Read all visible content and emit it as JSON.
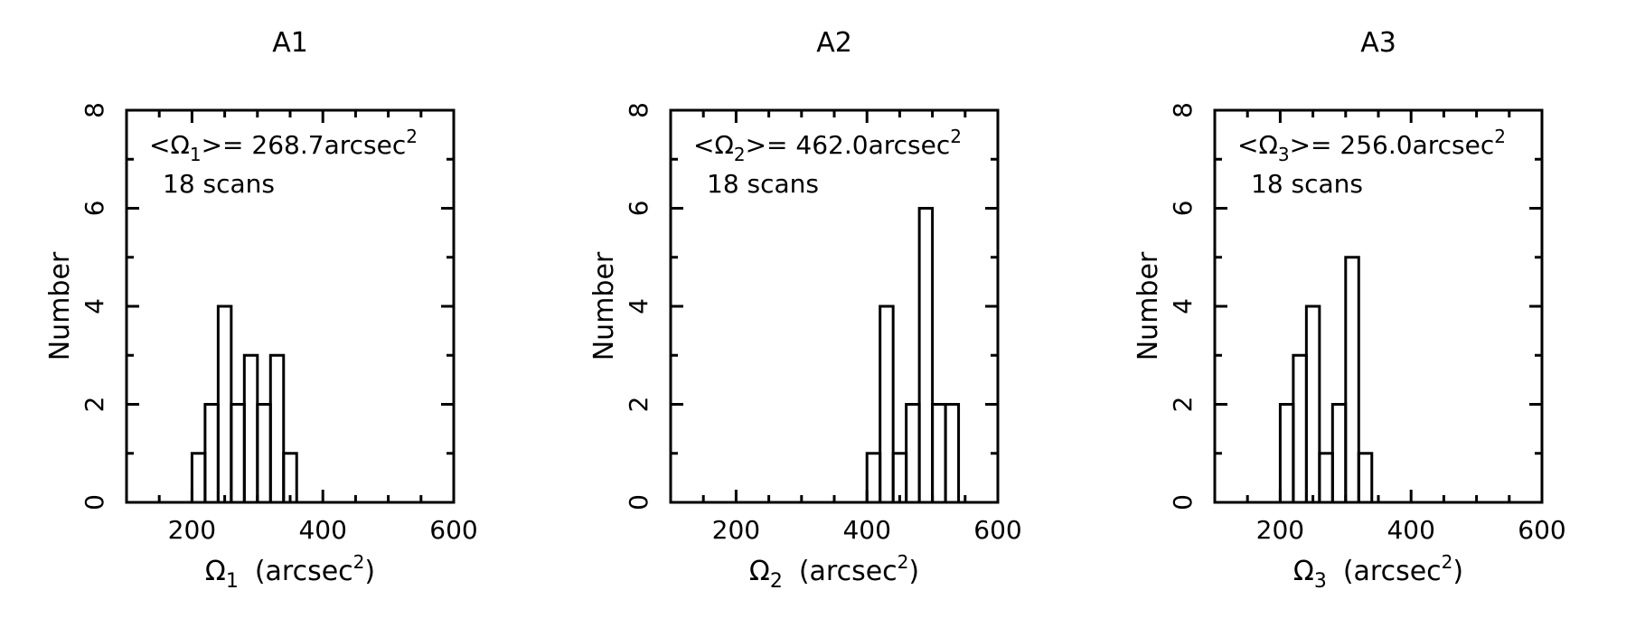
{
  "chart_data": [
    {
      "type": "bar",
      "title": "A1",
      "xlabel_symbol": "Ω",
      "xlabel_sub": "1",
      "xlabel_unit_open": "(arcsec",
      "xlabel_unit_sup": "2",
      "xlabel_unit_close": ")",
      "ylabel": "Number",
      "annotation": {
        "prefix": "<Ω",
        "sub": "1",
        "middle": ">= 268.7arcsec",
        "sup": "2",
        "scans": "18  scans"
      },
      "xlim": [
        100,
        600
      ],
      "ylim": [
        0,
        8
      ],
      "xticks_labeled": [
        "200",
        "400",
        "600"
      ],
      "yticks_labeled": [
        "0",
        "2",
        "4",
        "6",
        "8"
      ],
      "bin_width": 20,
      "bins": [
        {
          "left": 200,
          "count": 1
        },
        {
          "left": 220,
          "count": 2
        },
        {
          "left": 240,
          "count": 4
        },
        {
          "left": 260,
          "count": 2
        },
        {
          "left": 280,
          "count": 3
        },
        {
          "left": 300,
          "count": 2
        },
        {
          "left": 320,
          "count": 3
        },
        {
          "left": 340,
          "count": 1
        }
      ]
    },
    {
      "type": "bar",
      "title": "A2",
      "xlabel_symbol": "Ω",
      "xlabel_sub": "2",
      "xlabel_unit_open": "(arcsec",
      "xlabel_unit_sup": "2",
      "xlabel_unit_close": ")",
      "ylabel": "Number",
      "annotation": {
        "prefix": "<Ω",
        "sub": "2",
        "middle": ">= 462.0arcsec",
        "sup": "2",
        "scans": "18  scans"
      },
      "xlim": [
        100,
        600
      ],
      "ylim": [
        0,
        8
      ],
      "xticks_labeled": [
        "200",
        "400",
        "600"
      ],
      "yticks_labeled": [
        "0",
        "2",
        "4",
        "6",
        "8"
      ],
      "bin_width": 20,
      "bins": [
        {
          "left": 400,
          "count": 1
        },
        {
          "left": 420,
          "count": 4
        },
        {
          "left": 440,
          "count": 1
        },
        {
          "left": 460,
          "count": 2
        },
        {
          "left": 480,
          "count": 6
        },
        {
          "left": 500,
          "count": 2
        },
        {
          "left": 520,
          "count": 2
        }
      ]
    },
    {
      "type": "bar",
      "title": "A3",
      "xlabel_symbol": "Ω",
      "xlabel_sub": "3",
      "xlabel_unit_open": "(arcsec",
      "xlabel_unit_sup": "2",
      "xlabel_unit_close": ")",
      "ylabel": "Number",
      "annotation": {
        "prefix": "<Ω",
        "sub": "3",
        "middle": ">= 256.0arcsec",
        "sup": "2",
        "scans": "18  scans"
      },
      "xlim": [
        100,
        600
      ],
      "ylim": [
        0,
        8
      ],
      "xticks_labeled": [
        "200",
        "400",
        "600"
      ],
      "yticks_labeled": [
        "0",
        "2",
        "4",
        "6",
        "8"
      ],
      "bin_width": 20,
      "bins": [
        {
          "left": 200,
          "count": 2
        },
        {
          "left": 220,
          "count": 3
        },
        {
          "left": 240,
          "count": 4
        },
        {
          "left": 260,
          "count": 1
        },
        {
          "left": 280,
          "count": 2
        },
        {
          "left": 300,
          "count": 5
        },
        {
          "left": 320,
          "count": 1
        }
      ]
    }
  ]
}
